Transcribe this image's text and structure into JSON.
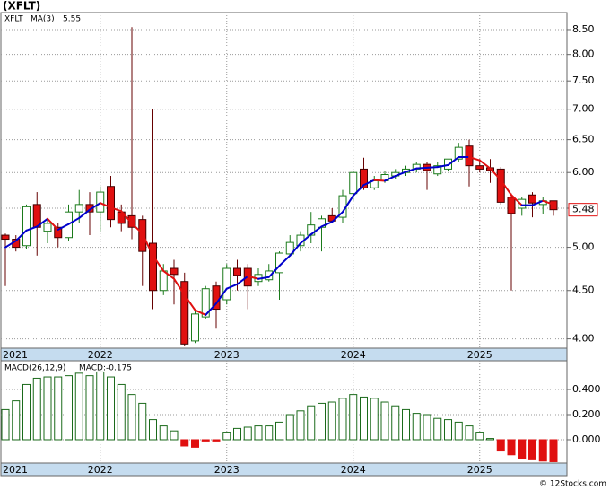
{
  "title": "(XFLT)",
  "footer": "© 12Stocks.com",
  "chart_data": [
    {
      "type": "candlestick",
      "symbol": "XFLT",
      "log_scale": true,
      "grid": true,
      "up_color": "#1a7a1a",
      "down_color": "#e01010",
      "categories": [
        "2021",
        null,
        null,
        null,
        null,
        null,
        null,
        null,
        null,
        "2022",
        null,
        null,
        null,
        null,
        null,
        null,
        null,
        null,
        null,
        null,
        null,
        "2023",
        null,
        null,
        null,
        null,
        null,
        null,
        null,
        null,
        null,
        null,
        null,
        "2024",
        null,
        null,
        null,
        null,
        null,
        null,
        null,
        null,
        null,
        null,
        null,
        "2025",
        null,
        null,
        null,
        null,
        null,
        null,
        null
      ],
      "open": [
        5.15,
        5.1,
        5.02,
        5.55,
        5.2,
        5.25,
        5.12,
        5.45,
        5.55,
        5.45,
        5.8,
        5.45,
        5.4,
        5.35,
        5.05,
        4.5,
        4.75,
        4.6,
        3.98,
        4.22,
        4.55,
        4.4,
        4.75,
        4.75,
        4.6,
        4.62,
        4.7,
        4.92,
        5.02,
        5.15,
        5.25,
        5.4,
        5.38,
        5.7,
        6.05,
        5.78,
        5.88,
        5.95,
        6.0,
        6.05,
        6.12,
        5.98,
        6.05,
        6.2,
        6.4,
        6.1,
        6.07,
        6.05,
        5.65,
        5.5,
        5.68,
        5.55,
        5.6
      ],
      "high": [
        5.17,
        5.15,
        5.55,
        5.72,
        5.35,
        5.3,
        5.55,
        5.75,
        5.72,
        5.8,
        5.95,
        5.55,
        8.55,
        5.4,
        7.0,
        4.8,
        4.85,
        4.7,
        4.3,
        4.55,
        4.6,
        4.8,
        4.85,
        4.8,
        4.75,
        4.8,
        4.95,
        5.15,
        5.2,
        5.45,
        5.4,
        5.5,
        5.75,
        6.02,
        6.22,
        5.95,
        6.02,
        6.05,
        6.1,
        6.15,
        6.15,
        6.15,
        6.2,
        6.45,
        6.5,
        6.2,
        6.2,
        6.08,
        5.7,
        5.65,
        5.72,
        5.65,
        5.6
      ],
      "low": [
        4.55,
        4.95,
        4.98,
        4.9,
        5.05,
        5.0,
        5.08,
        5.3,
        5.15,
        5.2,
        5.25,
        5.2,
        5.1,
        4.55,
        4.3,
        4.45,
        4.35,
        3.93,
        3.96,
        4.2,
        4.1,
        4.35,
        4.5,
        4.3,
        4.55,
        4.6,
        4.4,
        4.9,
        4.95,
        5.05,
        4.95,
        5.3,
        5.3,
        5.6,
        5.75,
        5.75,
        5.85,
        5.9,
        5.95,
        6.0,
        5.75,
        5.95,
        6.02,
        6.15,
        5.8,
        6.0,
        5.85,
        5.55,
        4.5,
        5.4,
        5.38,
        5.42,
        5.4
      ],
      "close": [
        5.1,
        5.0,
        5.52,
        5.25,
        5.3,
        5.12,
        5.45,
        5.55,
        5.45,
        5.72,
        5.35,
        5.3,
        5.25,
        4.95,
        4.5,
        4.72,
        4.68,
        3.95,
        4.25,
        4.52,
        4.3,
        4.75,
        4.67,
        4.55,
        4.68,
        4.72,
        4.93,
        5.06,
        5.15,
        5.28,
        5.36,
        5.33,
        5.67,
        6.0,
        5.78,
        5.88,
        5.97,
        6.0,
        6.05,
        6.12,
        6.03,
        6.1,
        6.2,
        6.38,
        6.1,
        6.05,
        6.03,
        5.58,
        5.43,
        5.62,
        5.57,
        5.6,
        5.48
      ],
      "ma": {
        "name": "MA(3)",
        "up_color": "#0000cc",
        "down_color": "#e01010",
        "values": [
          5.0,
          5.08,
          5.21,
          5.26,
          5.36,
          5.22,
          5.29,
          5.37,
          5.48,
          5.57,
          5.51,
          5.46,
          5.3,
          5.17,
          4.9,
          4.72,
          4.63,
          4.45,
          4.29,
          4.24,
          4.36,
          4.52,
          4.57,
          4.66,
          4.63,
          4.65,
          4.78,
          4.9,
          5.05,
          5.16,
          5.26,
          5.32,
          5.45,
          5.67,
          5.82,
          5.89,
          5.88,
          5.95,
          6.01,
          6.06,
          6.07,
          6.08,
          6.11,
          6.23,
          6.23,
          6.18,
          6.06,
          5.89,
          5.68,
          5.54,
          5.54,
          5.6,
          5.55
        ]
      },
      "ylim": [
        3.91,
        8.86
      ],
      "yticks": [
        {
          "value": 4,
          "label": "4.00"
        },
        {
          "value": 4.5,
          "label": "4.50"
        },
        {
          "value": 5,
          "label": "5.00"
        },
        {
          "value": 5.5,
          "label": "5.50"
        },
        {
          "value": 6,
          "label": "6.00"
        },
        {
          "value": 6.5,
          "label": "6.50"
        },
        {
          "value": 7,
          "label": "7.00"
        },
        {
          "value": 7.5,
          "label": "7.50"
        },
        {
          "value": 8,
          "label": "8.00"
        },
        {
          "value": 8.5,
          "label": "8.50"
        }
      ]
    },
    {
      "type": "bar",
      "grid": true,
      "label": "MACD:-0.175",
      "categories": [
        "2021",
        null,
        null,
        null,
        null,
        null,
        null,
        null,
        null,
        "2022",
        null,
        null,
        null,
        null,
        null,
        null,
        null,
        null,
        null,
        null,
        null,
        "2023",
        null,
        null,
        null,
        null,
        null,
        null,
        null,
        null,
        null,
        null,
        null,
        "2024",
        null,
        null,
        null,
        null,
        null,
        null,
        null,
        null,
        null,
        null,
        null,
        "2025",
        null,
        null,
        null,
        null,
        null,
        null,
        null
      ],
      "series": [
        {
          "name": "MACD(26,12,9)",
          "color": "#1a6a1a",
          "negative_color": "#e01010",
          "values": [
            0.24,
            0.31,
            0.44,
            0.49,
            0.5,
            0.5,
            0.51,
            0.53,
            0.51,
            0.54,
            0.5,
            0.44,
            0.36,
            0.29,
            0.16,
            0.11,
            0.07,
            -0.05,
            -0.06,
            -0.01,
            -0.01,
            0.06,
            0.09,
            0.1,
            0.11,
            0.11,
            0.14,
            0.2,
            0.23,
            0.27,
            0.29,
            0.3,
            0.33,
            0.36,
            0.34,
            0.33,
            0.3,
            0.27,
            0.24,
            0.21,
            0.2,
            0.17,
            0.16,
            0.14,
            0.11,
            0.06,
            0.01,
            -0.09,
            -0.12,
            -0.15,
            -0.16,
            -0.17,
            -0.175
          ]
        }
      ],
      "ylim": [
        -0.186,
        0.629
      ],
      "yticks": [
        {
          "value": 0,
          "label": "0.000"
        },
        {
          "value": 0.2,
          "label": "0.200"
        },
        {
          "value": 0.4,
          "label": "0.400"
        }
      ]
    }
  ]
}
